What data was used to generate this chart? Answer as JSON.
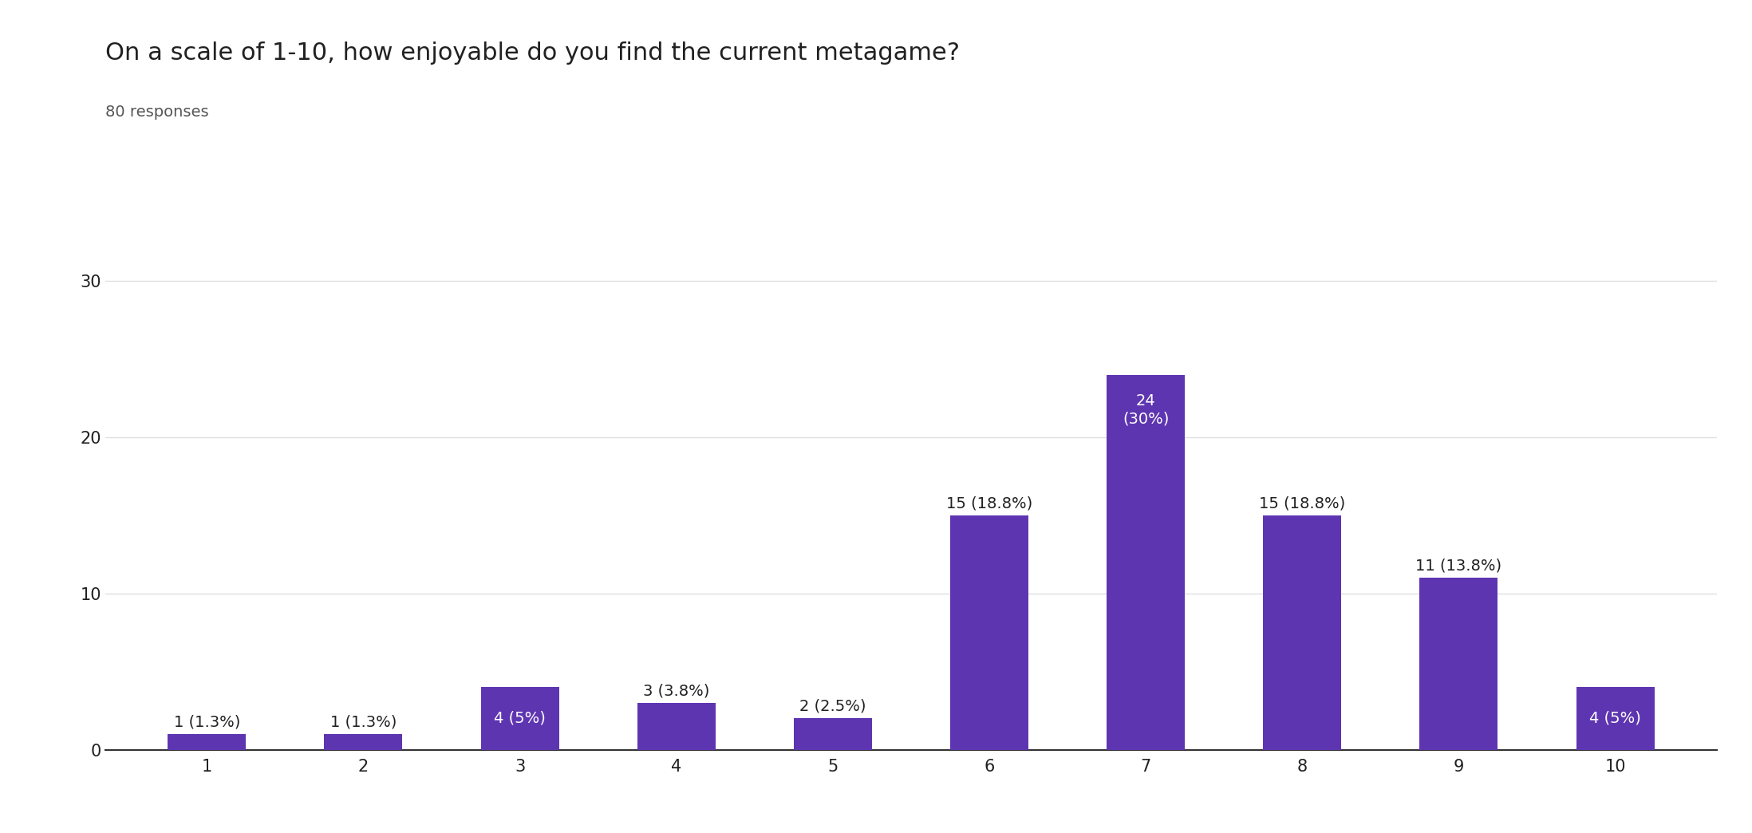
{
  "title": "On a scale of 1-10, how enjoyable do you find the current metagame?",
  "subtitle": "80 responses",
  "categories": [
    1,
    2,
    3,
    4,
    5,
    6,
    7,
    8,
    9,
    10
  ],
  "values": [
    1,
    1,
    4,
    3,
    2,
    15,
    24,
    15,
    11,
    4
  ],
  "labels": [
    "1 (1.3%)",
    "1 (1.3%)",
    "4 (5%)",
    "3 (3.8%)",
    "2 (2.5%)",
    "15 (18.8%)",
    "24\n(30%)",
    "15 (18.8%)",
    "11 (13.8%)",
    "4 (5%)"
  ],
  "bar_color": "#5e35b1",
  "background_color": "#ffffff",
  "title_fontsize": 22,
  "subtitle_fontsize": 14,
  "label_fontsize": 14,
  "tick_fontsize": 15,
  "ytick_fontsize": 15,
  "ylim": [
    0,
    32
  ],
  "yticks": [
    0,
    10,
    20,
    30
  ],
  "grid_color": "#e0e0e0",
  "title_color": "#212121",
  "subtitle_color": "#555555",
  "label_color_inside": "#ffffff",
  "label_color_outside": "#212121"
}
